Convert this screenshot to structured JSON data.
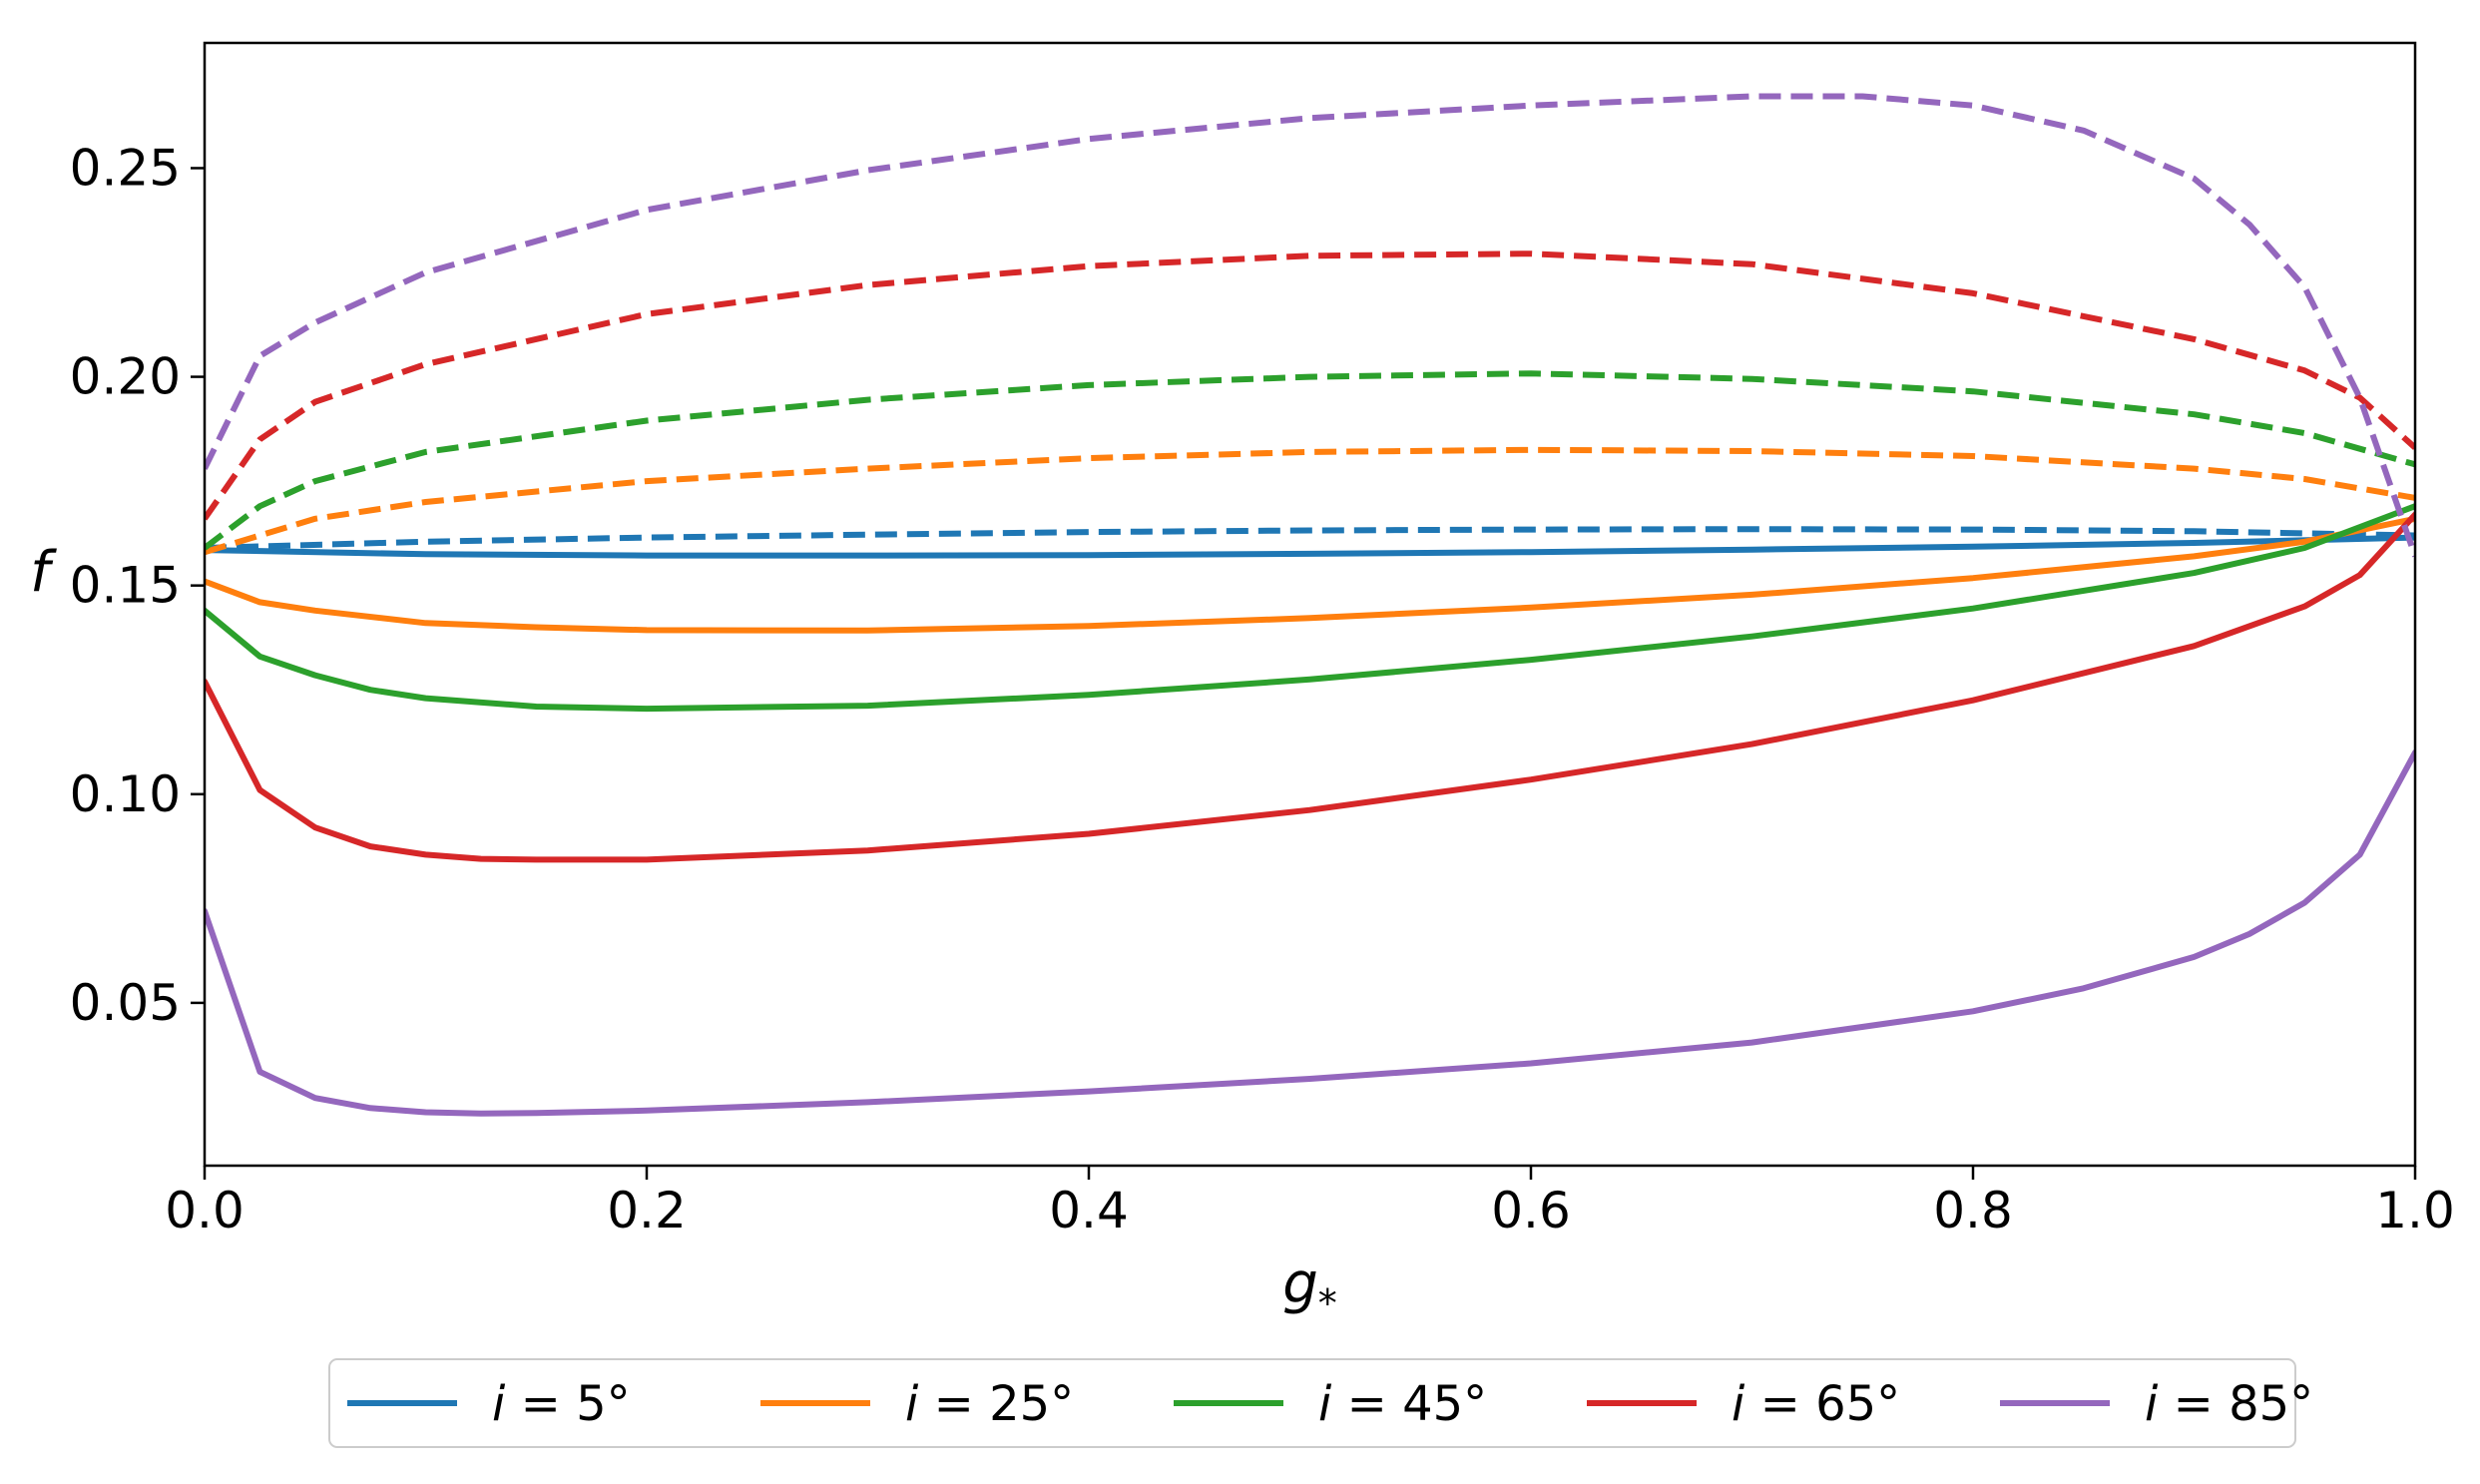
{
  "chart_data": {
    "type": "line",
    "xlabel": "g",
    "xlabel_sub": "*",
    "ylabel": "f",
    "xlim": [
      0.0,
      1.0
    ],
    "ylim": [
      0.011,
      0.28
    ],
    "xticks": [
      0.0,
      0.2,
      0.4,
      0.6,
      0.8,
      1.0
    ],
    "xtick_labels": [
      "0.0",
      "0.2",
      "0.4",
      "0.6",
      "0.8",
      "1.0"
    ],
    "yticks": [
      0.05,
      0.1,
      0.15,
      0.2,
      0.25
    ],
    "ytick_labels": [
      "0.05",
      "0.10",
      "0.15",
      "0.20",
      "0.25"
    ],
    "grid": false,
    "legend_position": "bottom-center",
    "legend": [
      {
        "text": "i = 5°",
        "color": "#1f77b4"
      },
      {
        "text": "i = 25°",
        "color": "#ff7f0e"
      },
      {
        "text": "i = 45°",
        "color": "#2ca02c"
      },
      {
        "text": "i = 65°",
        "color": "#d62728"
      },
      {
        "text": "i = 85°",
        "color": "#9467bd"
      }
    ],
    "series": [
      {
        "name": "i = 5° dashed",
        "color": "#1f77b4",
        "dash": true,
        "x": [
          0.0,
          0.1,
          0.2,
          0.3,
          0.4,
          0.5,
          0.6,
          0.7,
          0.8,
          0.9,
          0.95,
          1.0
        ],
        "y": [
          0.159,
          0.1605,
          0.1615,
          0.1622,
          0.1628,
          0.1632,
          0.1634,
          0.1635,
          0.1634,
          0.163,
          0.1625,
          0.162
        ]
      },
      {
        "name": "i = 5° solid",
        "color": "#1f77b4",
        "dash": false,
        "x": [
          0.0,
          0.1,
          0.2,
          0.3,
          0.4,
          0.5,
          0.6,
          0.7,
          0.8,
          0.9,
          1.0
        ],
        "y": [
          0.1585,
          0.1575,
          0.1572,
          0.1572,
          0.1573,
          0.1576,
          0.158,
          0.1586,
          0.1593,
          0.1602,
          0.1615
        ]
      },
      {
        "name": "i = 25° dashed",
        "color": "#ff7f0e",
        "dash": true,
        "x": [
          0.0,
          0.05,
          0.1,
          0.2,
          0.3,
          0.4,
          0.5,
          0.6,
          0.7,
          0.8,
          0.9,
          0.95,
          1.0
        ],
        "y": [
          0.158,
          0.166,
          0.17,
          0.175,
          0.178,
          0.1805,
          0.182,
          0.1825,
          0.1822,
          0.181,
          0.178,
          0.1755,
          0.171
        ]
      },
      {
        "name": "i = 25° solid",
        "color": "#ff7f0e",
        "dash": false,
        "x": [
          0.0,
          0.025,
          0.05,
          0.1,
          0.15,
          0.2,
          0.3,
          0.4,
          0.5,
          0.6,
          0.7,
          0.8,
          0.9,
          0.95,
          1.0
        ],
        "y": [
          0.151,
          0.146,
          0.144,
          0.141,
          0.14,
          0.1393,
          0.1392,
          0.1403,
          0.1422,
          0.1447,
          0.1478,
          0.1518,
          0.157,
          0.1605,
          0.166
        ]
      },
      {
        "name": "i = 45° dashed",
        "color": "#2ca02c",
        "dash": true,
        "x": [
          0.0,
          0.025,
          0.05,
          0.1,
          0.2,
          0.3,
          0.4,
          0.5,
          0.6,
          0.7,
          0.8,
          0.9,
          0.95,
          1.0
        ],
        "y": [
          0.159,
          0.169,
          0.175,
          0.182,
          0.1895,
          0.1945,
          0.198,
          0.2,
          0.2008,
          0.1995,
          0.1965,
          0.191,
          0.1865,
          0.179
        ]
      },
      {
        "name": "i = 45° solid",
        "color": "#2ca02c",
        "dash": false,
        "x": [
          0.0,
          0.025,
          0.05,
          0.075,
          0.1,
          0.15,
          0.2,
          0.3,
          0.4,
          0.5,
          0.6,
          0.7,
          0.8,
          0.9,
          0.95,
          1.0
        ],
        "y": [
          0.144,
          0.133,
          0.1285,
          0.125,
          0.123,
          0.121,
          0.1205,
          0.1212,
          0.1238,
          0.1275,
          0.1322,
          0.1378,
          0.1445,
          0.153,
          0.159,
          0.169
        ]
      },
      {
        "name": "i = 65° dashed",
        "color": "#d62728",
        "dash": true,
        "x": [
          0.0,
          0.025,
          0.05,
          0.1,
          0.2,
          0.3,
          0.4,
          0.5,
          0.6,
          0.7,
          0.8,
          0.9,
          0.95,
          0.975,
          1.0
        ],
        "y": [
          0.166,
          0.185,
          0.194,
          0.203,
          0.215,
          0.222,
          0.2265,
          0.229,
          0.2295,
          0.227,
          0.22,
          0.209,
          0.2015,
          0.195,
          0.183
        ]
      },
      {
        "name": "i = 65° solid",
        "color": "#d62728",
        "dash": false,
        "x": [
          0.0,
          0.025,
          0.05,
          0.075,
          0.1,
          0.125,
          0.15,
          0.2,
          0.3,
          0.4,
          0.5,
          0.6,
          0.7,
          0.8,
          0.9,
          0.95,
          0.975,
          1.0
        ],
        "y": [
          0.127,
          0.101,
          0.092,
          0.0875,
          0.0855,
          0.0845,
          0.0843,
          0.0843,
          0.0865,
          0.0905,
          0.0962,
          0.1035,
          0.112,
          0.1225,
          0.1355,
          0.145,
          0.1525,
          0.167
        ]
      },
      {
        "name": "i = 85° dashed",
        "color": "#9467bd",
        "dash": true,
        "x": [
          0.0,
          0.025,
          0.05,
          0.1,
          0.2,
          0.3,
          0.4,
          0.5,
          0.6,
          0.7,
          0.75,
          0.8,
          0.85,
          0.9,
          0.925,
          0.95,
          0.975,
          1.0
        ],
        "y": [
          0.178,
          0.205,
          0.213,
          0.225,
          0.24,
          0.2495,
          0.257,
          0.262,
          0.265,
          0.2672,
          0.2672,
          0.265,
          0.259,
          0.2475,
          0.2365,
          0.2215,
          0.195,
          0.157
        ]
      },
      {
        "name": "i = 85° solid",
        "color": "#9467bd",
        "dash": false,
        "x": [
          0.0,
          0.025,
          0.05,
          0.075,
          0.1,
          0.125,
          0.15,
          0.2,
          0.3,
          0.4,
          0.5,
          0.6,
          0.7,
          0.8,
          0.85,
          0.9,
          0.925,
          0.95,
          0.975,
          1.0
        ],
        "y": [
          0.072,
          0.0335,
          0.0272,
          0.0248,
          0.0238,
          0.0235,
          0.0236,
          0.0242,
          0.0262,
          0.0288,
          0.0318,
          0.0355,
          0.0405,
          0.048,
          0.0535,
          0.061,
          0.0665,
          0.074,
          0.0855,
          0.11
        ]
      }
    ]
  }
}
